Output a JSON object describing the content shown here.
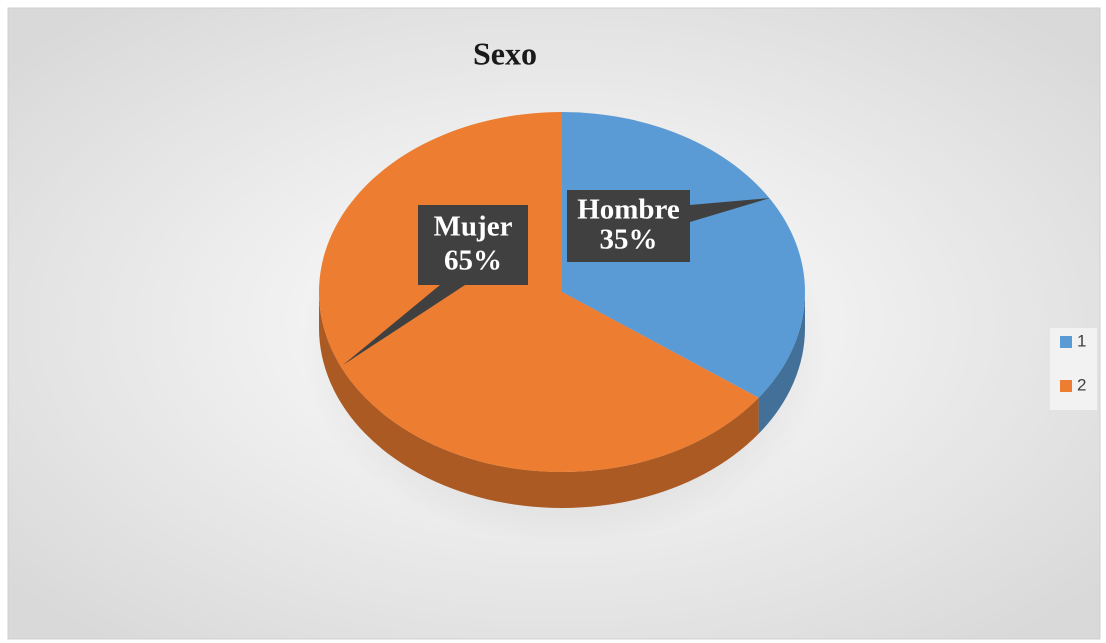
{
  "chart_data": {
    "type": "pie",
    "title": "Sexo",
    "categories": [
      "1",
      "2"
    ],
    "labels": [
      "Hombre",
      "Mujer"
    ],
    "values": [
      35,
      65
    ],
    "value_labels": [
      "35%",
      "65%"
    ],
    "colors": [
      "#5b9bd5",
      "#ed7d31"
    ],
    "legend": "right"
  }
}
